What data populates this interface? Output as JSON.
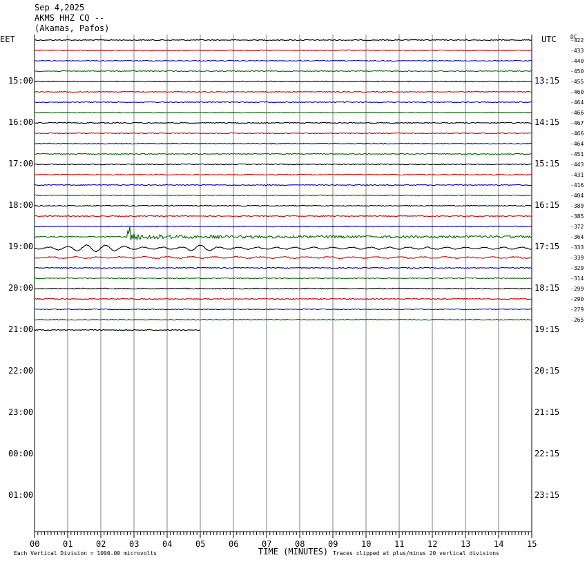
{
  "header": {
    "date": "Sep 4,2025",
    "station": "AKMS HHZ CQ --",
    "location": "(Akamas, Pafos)"
  },
  "left_zone_label": "EET",
  "right_zone_label": "UTC",
  "dc_label": "DC",
  "footer": {
    "scale_note": "Each Vertical Division = 1000.00 microvolts",
    "xlabel": "TIME (MINUTES)",
    "clip_note": "Traces clipped at plus/minus 20 vertical divisions"
  },
  "colors": {
    "black": "#000000",
    "red": "#d00000",
    "blue": "#0000c0",
    "green": "#006600",
    "grid": "#808080"
  },
  "chart_data": {
    "type": "line",
    "title": "Sep 4,2025  AKMS HHZ CQ --  (Akamas, Pafos)",
    "xlabel": "TIME (MINUTES)",
    "xlim": [
      0,
      15
    ],
    "x_ticks": [
      "00",
      "01",
      "02",
      "03",
      "04",
      "05",
      "06",
      "07",
      "08",
      "09",
      "10",
      "11",
      "12",
      "13",
      "14",
      "15"
    ],
    "hour_labels_left": [
      "15:00",
      "16:00",
      "17:00",
      "18:00",
      "19:00",
      "20:00",
      "21:00",
      "22:00",
      "23:00",
      "00:00",
      "01:00"
    ],
    "hour_labels_right": [
      "13:15",
      "14:15",
      "15:15",
      "16:15",
      "17:15",
      "18:15",
      "19:15",
      "20:15",
      "21:15",
      "22:15",
      "23:15"
    ],
    "trace_colors": [
      "black",
      "red",
      "blue",
      "green"
    ],
    "dc_offsets": [
      "-422",
      "-433",
      "-440",
      "-450",
      "-455",
      "-460",
      "-464",
      "-466",
      "-467",
      "-466",
      "-464",
      "-451",
      "-443",
      "-431",
      "-416",
      "-404",
      "-389",
      "-385",
      "-372",
      "-364",
      "-333",
      "-339",
      "-329",
      "-314",
      "-299",
      "-290",
      "-279",
      "-265"
    ],
    "last_trace_end_minute": 5,
    "event": {
      "start_minute": 2.8,
      "trace_index": 19,
      "note": "earthquake signal with surface waves on following trace"
    }
  }
}
